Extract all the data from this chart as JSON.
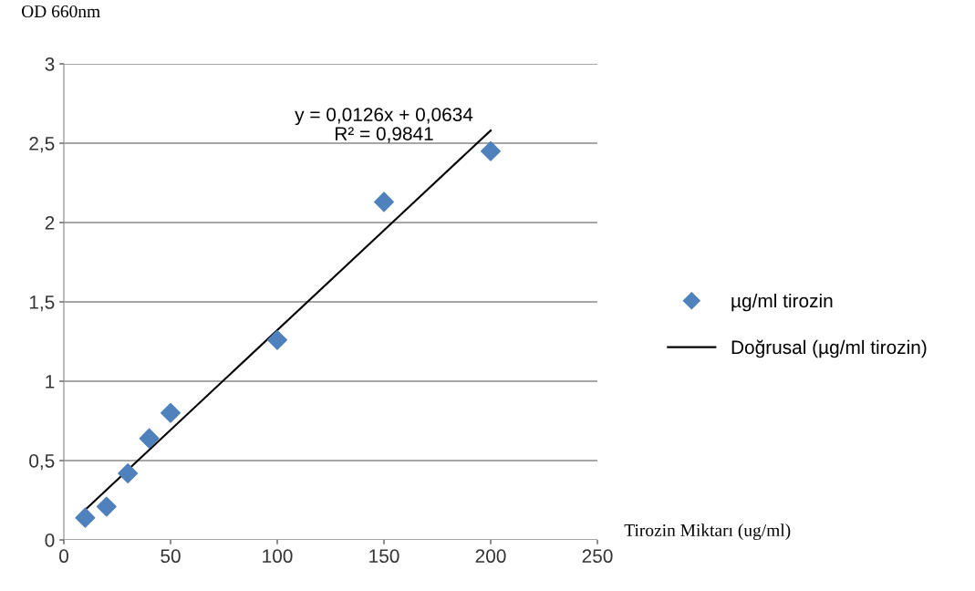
{
  "chart_data": {
    "type": "scatter",
    "ylabel": "OD 660nm",
    "xlabel": "Tirozin Miktarı (ug/ml)",
    "xlim": [
      0,
      250
    ],
    "xticks": [
      0,
      50,
      100,
      150,
      200,
      250
    ],
    "ylim": [
      0,
      3
    ],
    "yticks": [
      0,
      {
        "value": 0.5,
        "label": "0,5"
      },
      1,
      {
        "value": 1.5,
        "label": "1,5"
      },
      2,
      {
        "value": 2.5,
        "label": "2,5"
      },
      3
    ],
    "grid": "y",
    "legend": "right",
    "series": [
      {
        "name": "µg/ml tirozin",
        "color": "#4f81bd",
        "marker": "diamond",
        "x": [
          10,
          20,
          30,
          40,
          50,
          100,
          150,
          200
        ],
        "values": [
          0.14,
          0.21,
          0.42,
          0.64,
          0.8,
          1.26,
          2.13,
          2.45
        ]
      },
      {
        "name": "Doğrusal (µg/ml tirozin)",
        "type": "line",
        "color": "#000000",
        "x": [
          10,
          200
        ],
        "values": [
          0.19,
          2.58
        ],
        "marker": "none"
      }
    ],
    "annotations": [
      "y = 0,0126x + 0,0634\nR² = 0,9841"
    ]
  }
}
